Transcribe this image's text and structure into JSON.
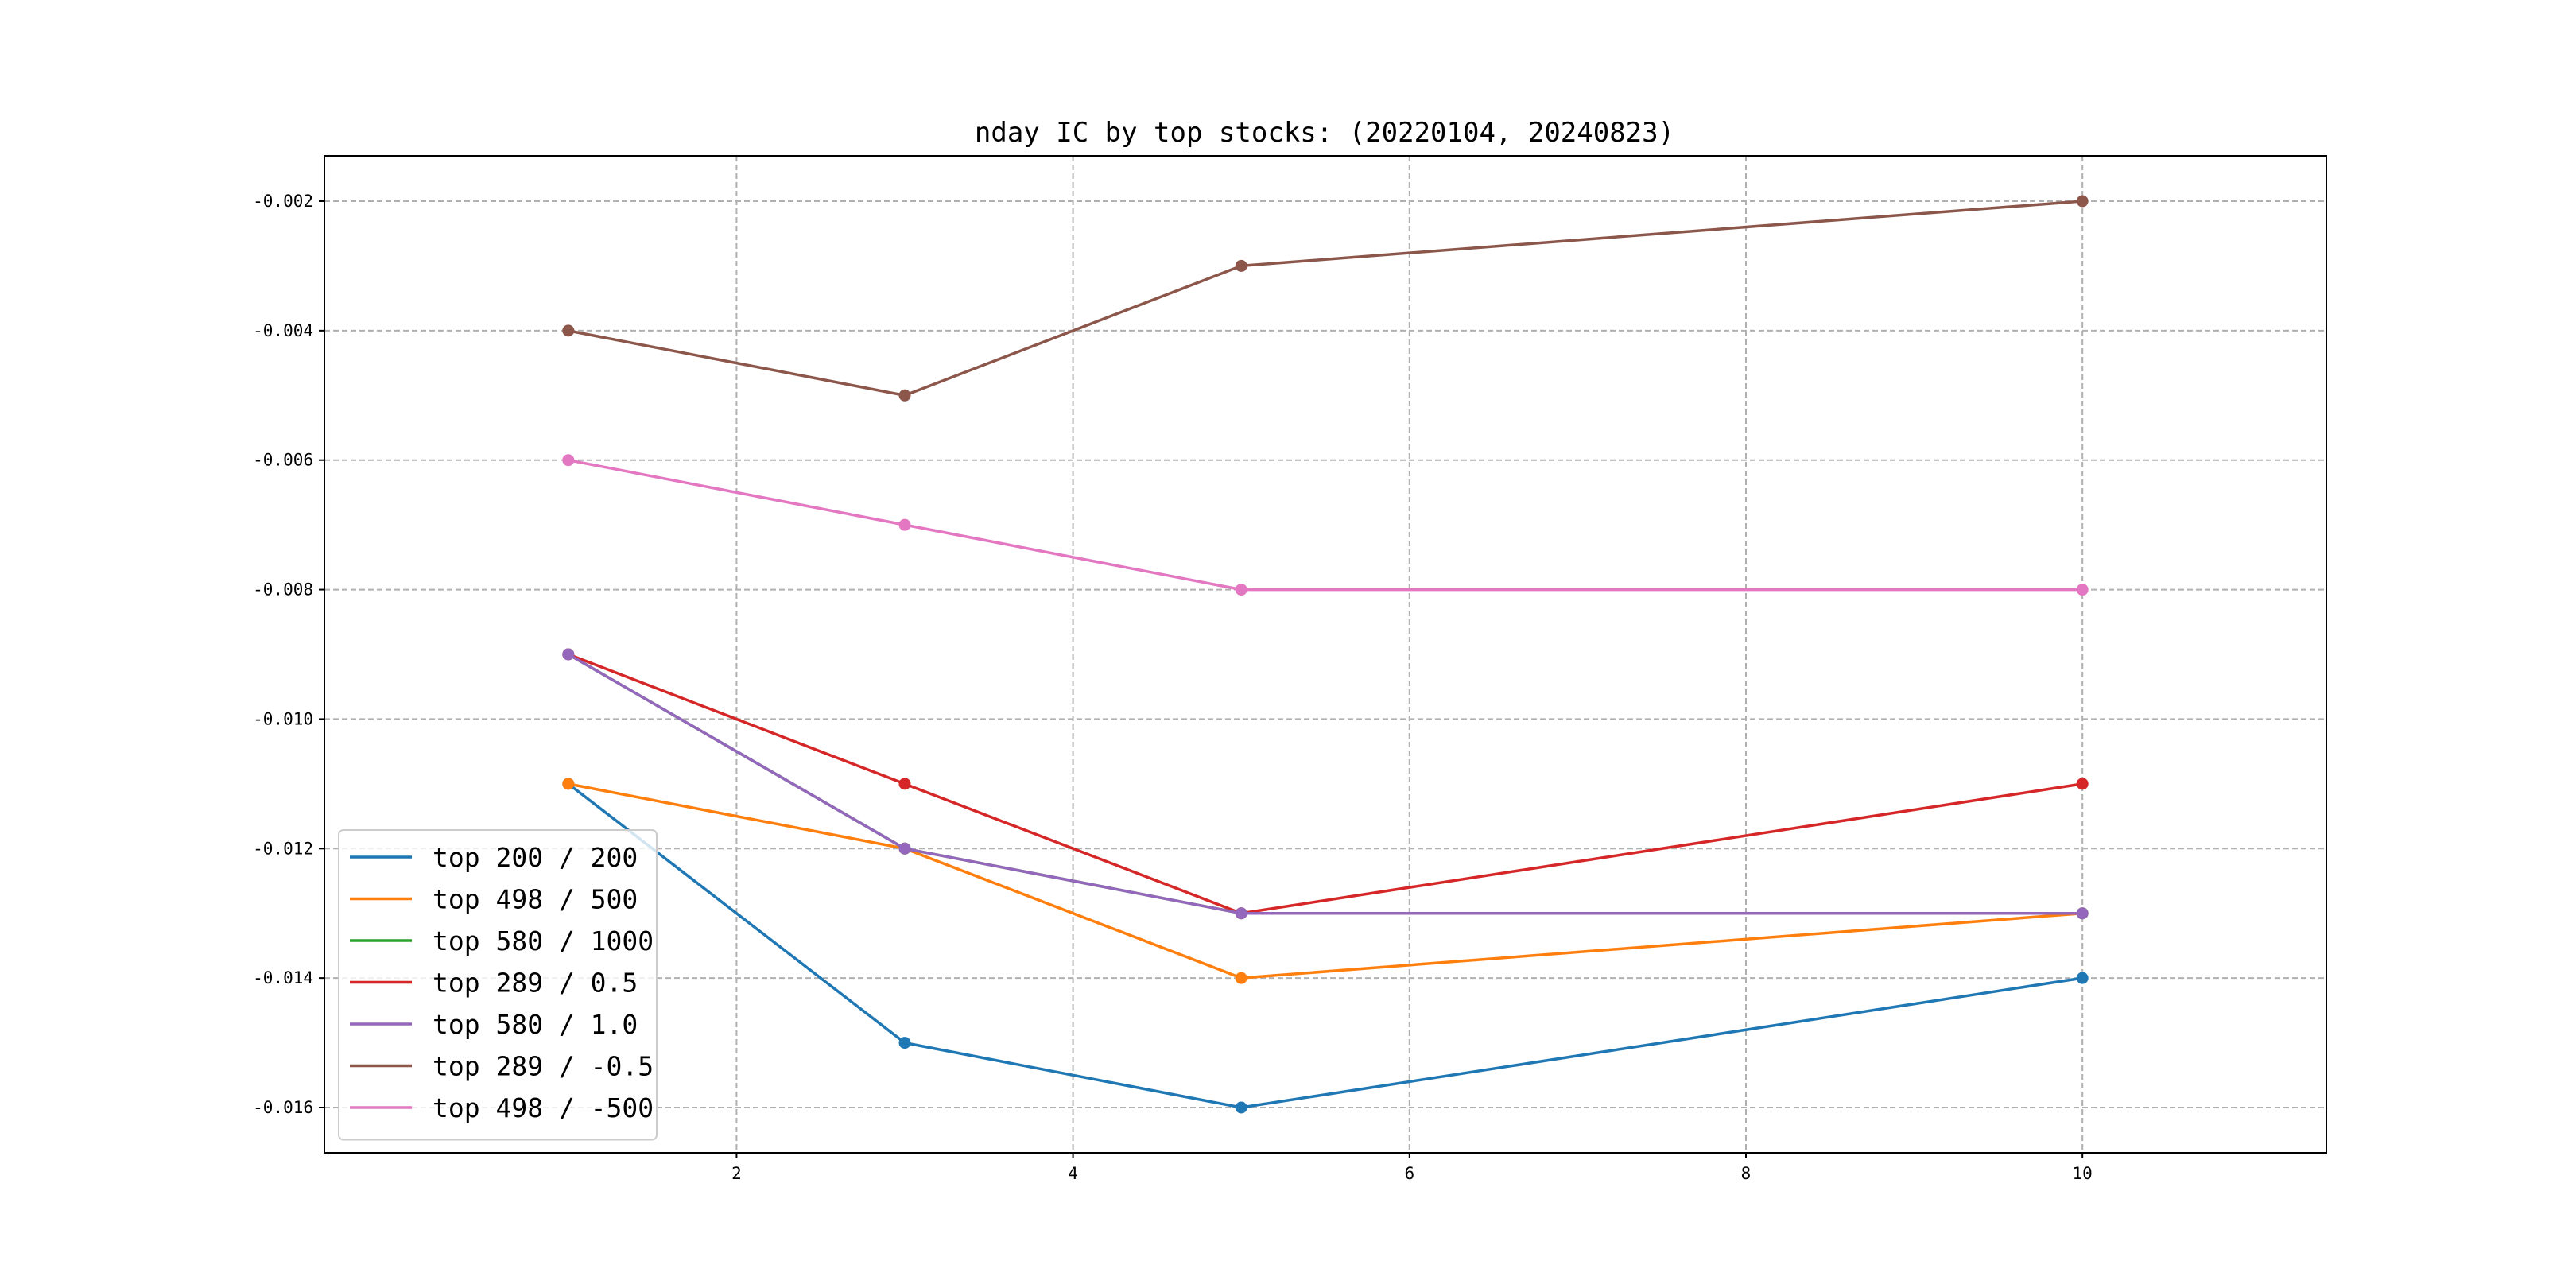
{
  "chart_data": {
    "type": "line",
    "title": "nday IC by top stocks: (20220104, 20240823)",
    "xlabel": "",
    "ylabel": "",
    "x": [
      1,
      3,
      5,
      10
    ],
    "xlim": [
      -0.45,
      11.45
    ],
    "ylim": [
      -0.0167,
      -0.0013
    ],
    "xticks": [
      2,
      4,
      6,
      8,
      10
    ],
    "xtick_labels": [
      "2",
      "4",
      "6",
      "8",
      "10"
    ],
    "yticks": [
      -0.002,
      -0.004,
      -0.006,
      -0.008,
      -0.01,
      -0.012,
      -0.014,
      -0.016
    ],
    "ytick_labels": [
      "-0.002",
      "-0.004",
      "-0.006",
      "-0.008",
      "-0.010",
      "-0.012",
      "-0.014",
      "-0.016"
    ],
    "grid": true,
    "legend_position": "lower-left",
    "markers": true,
    "series": [
      {
        "name": "top 200 / 200",
        "color": "#1f77b4",
        "values": [
          -0.011,
          -0.015,
          -0.016,
          -0.014
        ]
      },
      {
        "name": "top 498 / 500",
        "color": "#ff7f0e",
        "values": [
          -0.011,
          -0.012,
          -0.014,
          -0.013
        ]
      },
      {
        "name": "top 580 / 1000",
        "color": "#2ca02c",
        "values": [
          -0.009,
          -0.012,
          -0.013,
          -0.013
        ]
      },
      {
        "name": "top 289 / 0.5",
        "color": "#d62728",
        "values": [
          -0.009,
          -0.011,
          -0.013,
          -0.011
        ]
      },
      {
        "name": "top 580 / 1.0",
        "color": "#9467bd",
        "values": [
          -0.009,
          -0.012,
          -0.013,
          -0.013
        ]
      },
      {
        "name": "top 289 / -0.5",
        "color": "#8c564b",
        "values": [
          -0.004,
          -0.005,
          -0.003,
          -0.002
        ]
      },
      {
        "name": "top 498 / -500",
        "color": "#e377c2",
        "values": [
          -0.006,
          -0.007,
          -0.008,
          -0.008
        ]
      }
    ]
  }
}
